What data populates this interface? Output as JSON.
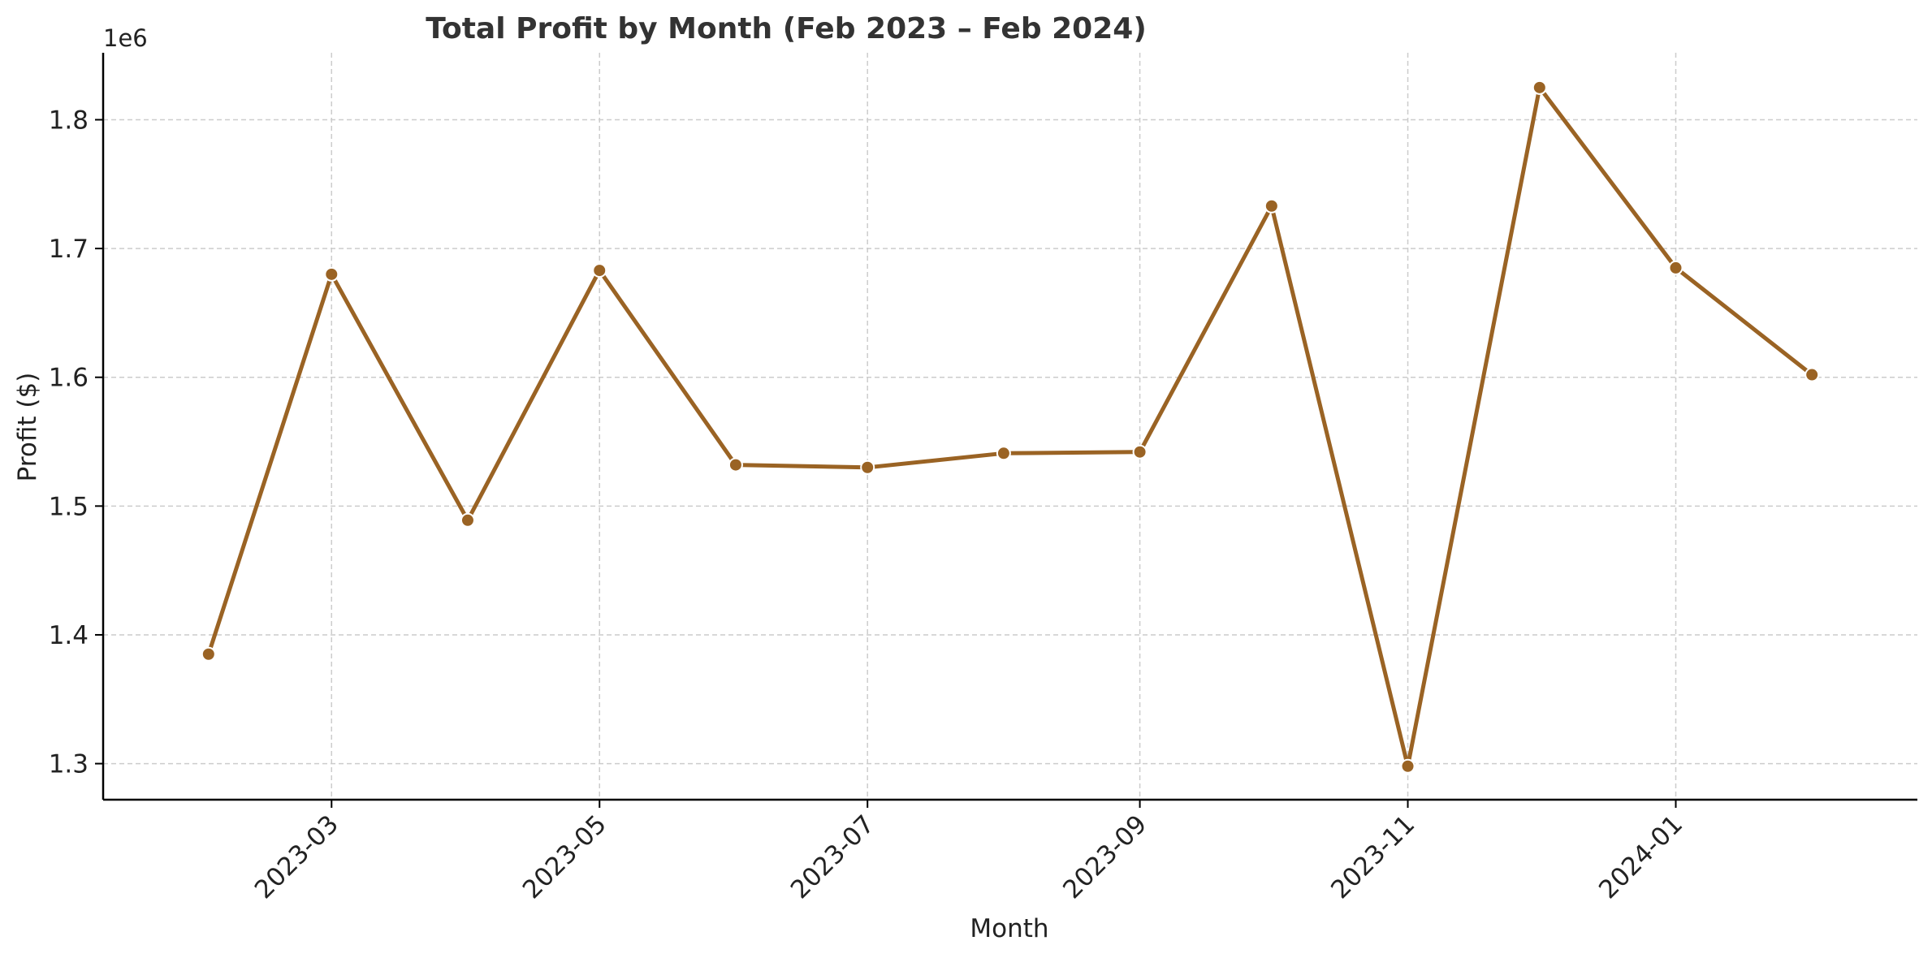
{
  "chart_data": {
    "type": "line",
    "title": "Total Profit by Month (Feb 2023 – Feb 2024)",
    "xlabel": "Month",
    "ylabel": "Profit ($)",
    "y_offset_label": "1e6",
    "y_scale": 1000000,
    "x": [
      "2023-02",
      "2023-03",
      "2023-04",
      "2023-05",
      "2023-06",
      "2023-07",
      "2023-08",
      "2023-09",
      "2023-10",
      "2023-11",
      "2023-12",
      "2024-01",
      "2024-02"
    ],
    "values": [
      1385000,
      1680000,
      1489000,
      1683000,
      1532000,
      1530000,
      1541000,
      1542000,
      1733000,
      1298000,
      1825000,
      1685000,
      1602000
    ],
    "xlim": [
      "2023-01-08",
      "2024-02-25"
    ],
    "ylim": [
      1272000,
      1852000
    ],
    "x_tick_labels": [
      "2023-03",
      "2023-05",
      "2023-07",
      "2023-09",
      "2023-11",
      "2024-01"
    ],
    "y_tick_values": [
      1.3,
      1.4,
      1.5,
      1.6,
      1.7,
      1.8
    ],
    "y_tick_labels": [
      "1.3",
      "1.4",
      "1.5",
      "1.6",
      "1.7",
      "1.8"
    ],
    "grid": true,
    "colors": {
      "line": "#9a6324",
      "grid": "#cccccc",
      "axis": "#000000",
      "title": "#333333",
      "text": "#222222"
    }
  }
}
